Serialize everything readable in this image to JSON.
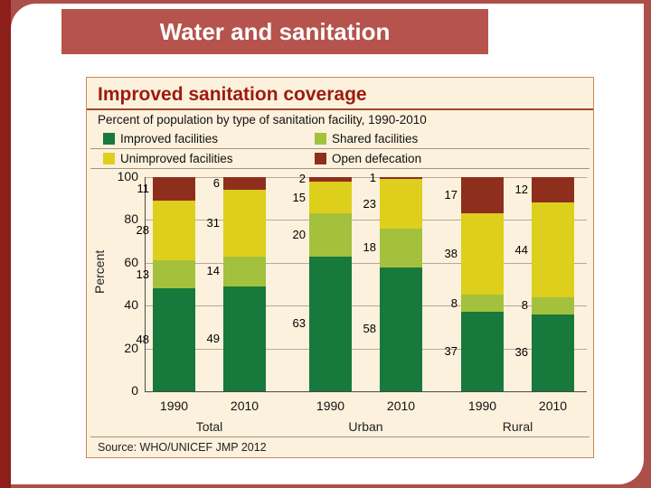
{
  "slide": {
    "title": "Water and sanitation"
  },
  "chart": {
    "title": "Improved sanitation coverage",
    "subtitle": "Percent of population by type of sanitation facility, 1990-2010",
    "ylabel": "Percent",
    "source": "Source: WHO/UNICEF JMP 2012"
  },
  "chart_data": {
    "type": "bar",
    "stacked": true,
    "title": "Improved sanitation coverage",
    "ylabel": "Percent",
    "ylim": [
      0,
      100
    ],
    "yticks": [
      0,
      20,
      40,
      60,
      80,
      100
    ],
    "grid": true,
    "legend_position": "top",
    "groups": [
      "Total",
      "Urban",
      "Rural"
    ],
    "categories": [
      "1990",
      "2010",
      "1990",
      "2010",
      "1990",
      "2010"
    ],
    "series": [
      {
        "name": "Improved facilities",
        "color": "#17793b",
        "values": [
          48,
          49,
          63,
          58,
          37,
          36
        ]
      },
      {
        "name": "Shared facilities",
        "color": "#a3c13c",
        "values": [
          13,
          14,
          20,
          18,
          8,
          8
        ]
      },
      {
        "name": "Unimproved facilities",
        "color": "#ddcf1b",
        "values": [
          28,
          31,
          15,
          23,
          38,
          44
        ]
      },
      {
        "name": "Open defecation",
        "color": "#8e2e1d",
        "values": [
          11,
          6,
          2,
          1,
          17,
          12
        ]
      }
    ]
  }
}
